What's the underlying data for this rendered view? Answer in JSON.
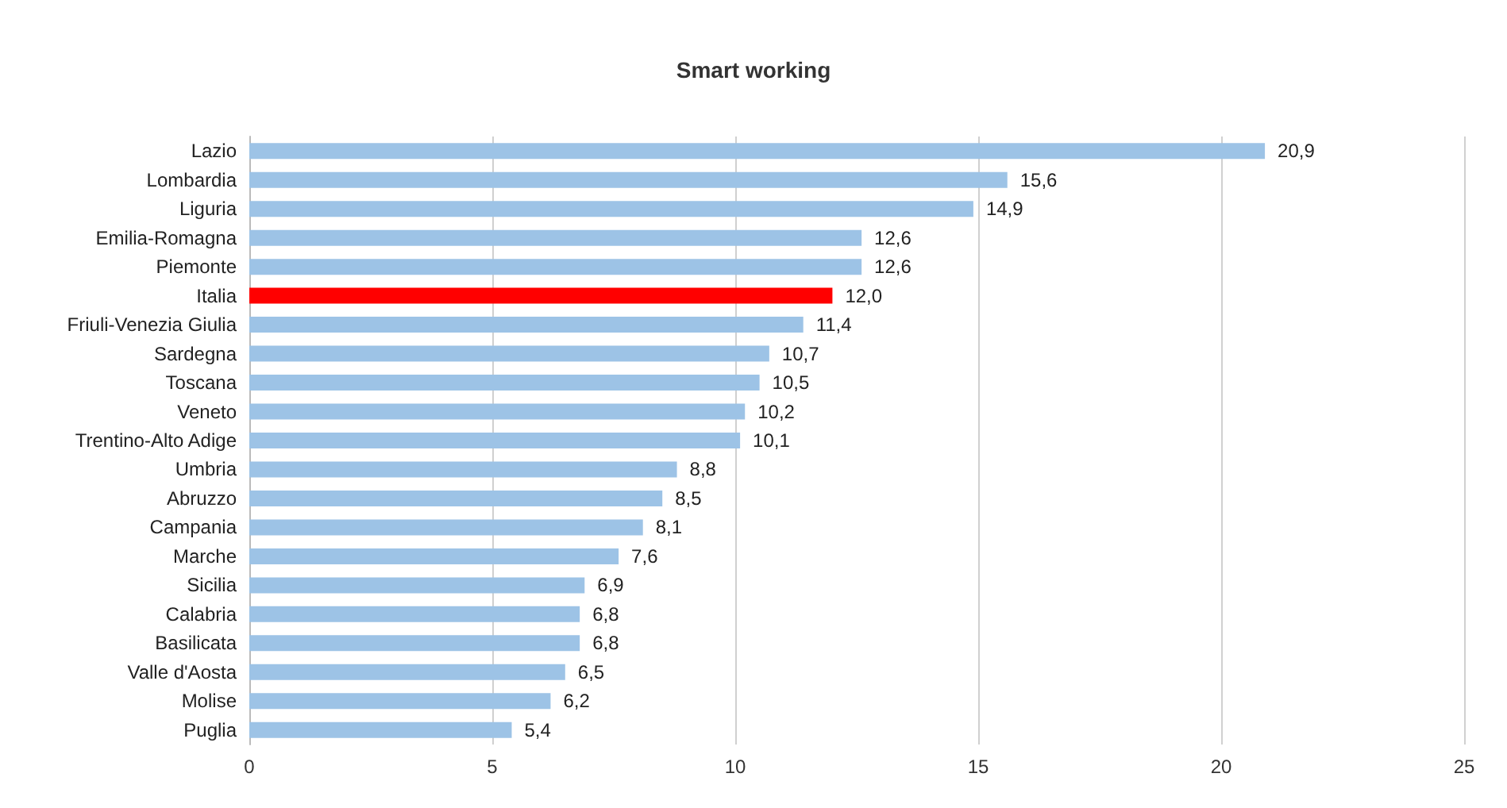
{
  "chart_data": {
    "type": "bar",
    "orientation": "horizontal",
    "title": "Smart working",
    "categories": [
      "Lazio",
      "Lombardia",
      "Liguria",
      "Emilia-Romagna",
      "Piemonte",
      "Italia",
      "Friuli-Venezia Giulia",
      "Sardegna",
      "Toscana",
      "Veneto",
      "Trentino-Alto Adige",
      "Umbria",
      "Abruzzo",
      "Campania",
      "Marche",
      "Sicilia",
      "Calabria",
      "Basilicata",
      "Valle d'Aosta",
      "Molise",
      "Puglia"
    ],
    "values": [
      20.9,
      15.6,
      14.9,
      12.6,
      12.6,
      12.0,
      11.4,
      10.7,
      10.5,
      10.2,
      10.1,
      8.8,
      8.5,
      8.1,
      7.6,
      6.9,
      6.8,
      6.8,
      6.5,
      6.2,
      5.4
    ],
    "value_labels": [
      "20,9",
      "15,6",
      "14,9",
      "12,6",
      "12,6",
      "12,0",
      "11,4",
      "10,7",
      "10,5",
      "10,2",
      "10,1",
      "8,8",
      "8,5",
      "8,1",
      "7,6",
      "6,9",
      "6,8",
      "6,8",
      "6,5",
      "6,2",
      "5,4"
    ],
    "colors": [
      "#9dc3e6",
      "#9dc3e6",
      "#9dc3e6",
      "#9dc3e6",
      "#9dc3e6",
      "#ff0000",
      "#9dc3e6",
      "#9dc3e6",
      "#9dc3e6",
      "#9dc3e6",
      "#9dc3e6",
      "#9dc3e6",
      "#9dc3e6",
      "#9dc3e6",
      "#9dc3e6",
      "#9dc3e6",
      "#9dc3e6",
      "#9dc3e6",
      "#9dc3e6",
      "#9dc3e6",
      "#9dc3e6"
    ],
    "xlim": [
      0,
      25
    ],
    "xticks": [
      0,
      5,
      10,
      15,
      20,
      25
    ],
    "grid": "x"
  }
}
